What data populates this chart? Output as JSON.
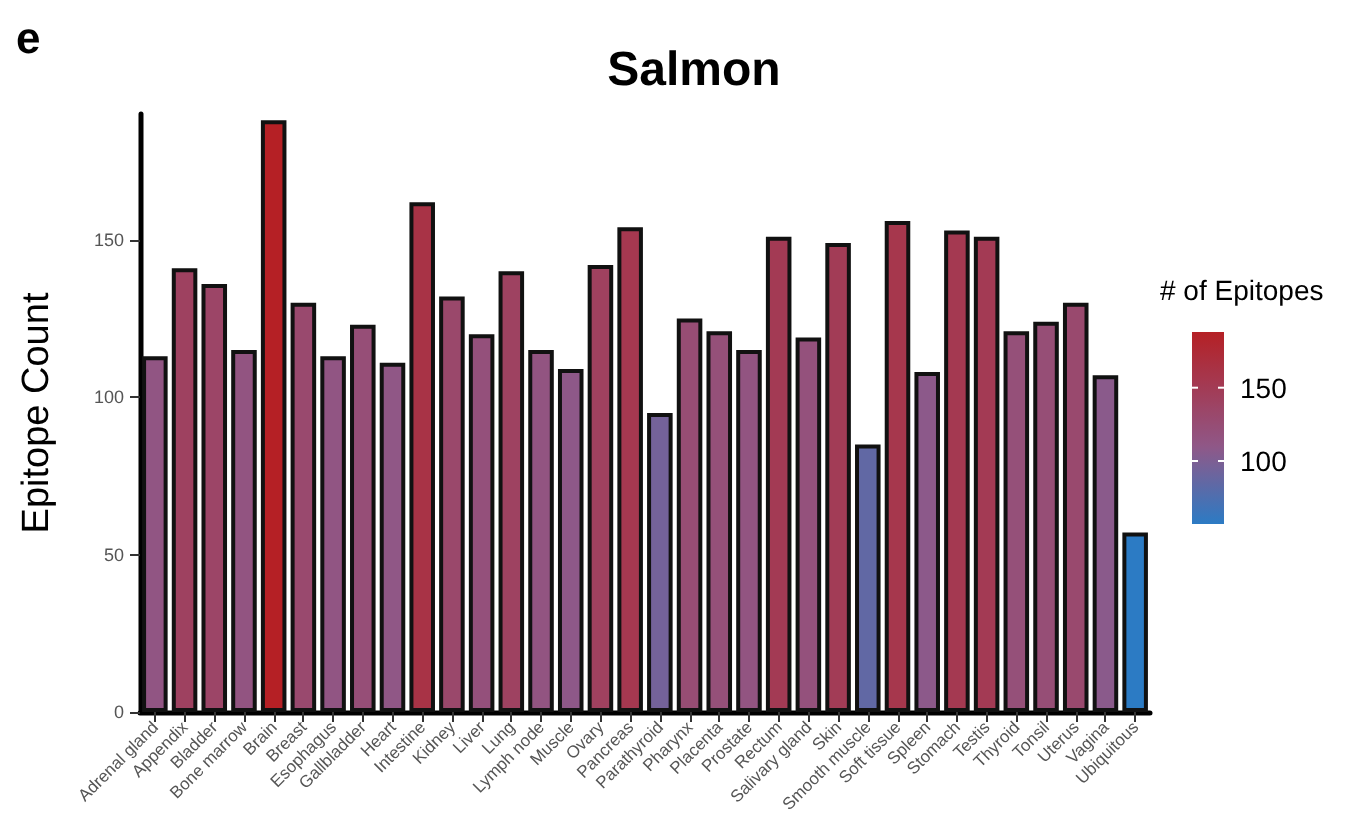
{
  "chart_data": {
    "type": "bar",
    "title": "Salmon",
    "ylabel": "Epitope Count",
    "clabel": "# of Epitopes",
    "annotations": [
      "e"
    ],
    "categories": [
      "Adrenal gland",
      "Appendix",
      "Bladder",
      "Bone marrow",
      "Brain",
      "Breast",
      "Esophagus",
      "Gallbladder",
      "Heart",
      "Intestine",
      "Kidney",
      "Liver",
      "Lung",
      "Lymph node",
      "Muscle",
      "Ovary",
      "Pancreas",
      "Parathyroid",
      "Pharynx",
      "Placenta",
      "Prostate",
      "Rectum",
      "Salivary gland",
      "Skin",
      "Smooth muscle",
      "Soft tissue",
      "Spleen",
      "Stomach",
      "Testis",
      "Thyroid",
      "Tonsil",
      "Uterus",
      "Vagina",
      "Ubiquitous"
    ],
    "values": [
      113,
      141,
      136,
      115,
      188,
      130,
      113,
      123,
      111,
      162,
      132,
      120,
      140,
      115,
      109,
      142,
      154,
      95,
      125,
      121,
      115,
      151,
      119,
      149,
      85,
      156,
      108,
      153,
      151,
      121,
      124,
      130,
      107,
      57
    ],
    "cvalues": [
      113,
      141,
      136,
      115,
      188,
      130,
      113,
      123,
      111,
      162,
      132,
      120,
      140,
      115,
      109,
      142,
      154,
      95,
      125,
      121,
      115,
      151,
      119,
      149,
      85,
      156,
      108,
      153,
      151,
      121,
      124,
      130,
      107,
      57
    ],
    "colors": [
      "#915583",
      "#9e4160",
      "#9c4567",
      "#925481",
      "#b52025",
      "#99496e",
      "#915583",
      "#964e77",
      "#905786",
      "#a83346",
      "#9a486b",
      "#94507b",
      "#9e4261",
      "#925481",
      "#8e5888",
      "#9f415f",
      "#a53850",
      "#746299",
      "#974d74",
      "#955079",
      "#925481",
      "#a33a54",
      "#94517c",
      "#a23c56",
      "#6168a4",
      "#a6374d",
      "#8c598a",
      "#a43951",
      "#a33a54",
      "#955079",
      "#964e76",
      "#99496e",
      "#8a5a8b",
      "#2c7bc4"
    ],
    "clim": [
      57,
      188
    ],
    "cticks": [
      100,
      150
    ],
    "ylim": [
      0,
      190
    ],
    "yticks": [
      0,
      50,
      100,
      150
    ],
    "grid": false
  }
}
